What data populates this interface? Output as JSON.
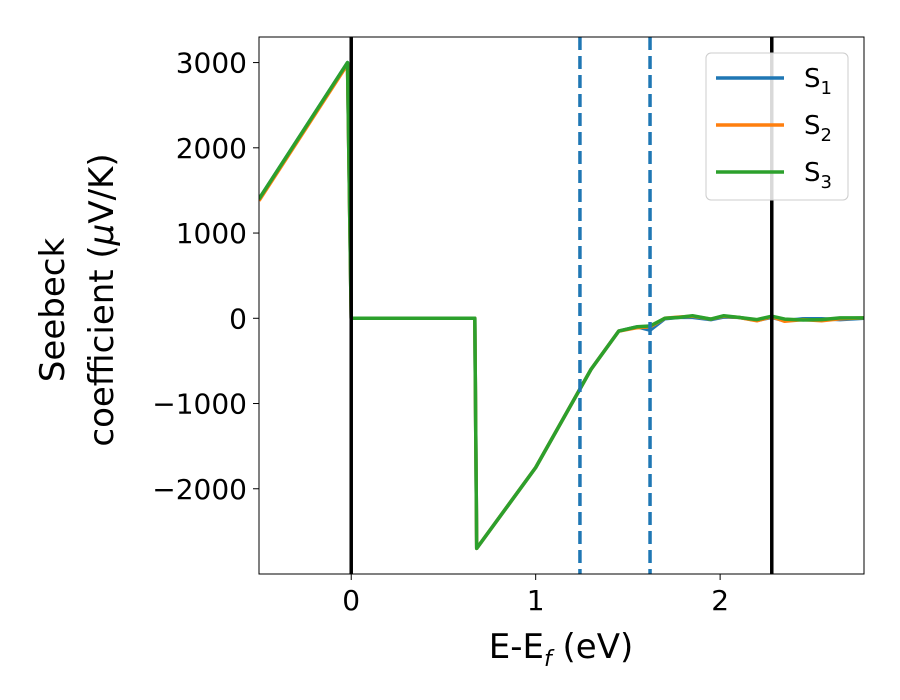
{
  "chart_data": {
    "type": "line",
    "xlabel": "E-E",
    "xlabel_sub": "f",
    "xlabel_unit": " (eV)",
    "ylabel_line1": "Seebeck",
    "ylabel_line2": "coefficient  (",
    "ylabel_mu": "μ",
    "ylabel_unit": "V/K)",
    "xlim": [
      -0.5,
      2.78
    ],
    "ylim": [
      -3000,
      3300
    ],
    "x_ticks": [
      0,
      1,
      2
    ],
    "x_tick_labels": [
      "0",
      "1",
      "2"
    ],
    "y_ticks": [
      3000,
      2000,
      1000,
      0,
      -1000,
      -2000
    ],
    "y_tick_labels": [
      "3000",
      "2000",
      "1000",
      "0",
      "−1000",
      "−2000"
    ],
    "vlines": [
      {
        "x": 0.0,
        "style": "solid",
        "color": "#000000"
      },
      {
        "x": 2.28,
        "style": "solid",
        "color": "#000000"
      },
      {
        "x": 1.24,
        "style": "dashed",
        "color": "#1f77b4"
      },
      {
        "x": 1.62,
        "style": "dashed",
        "color": "#1f77b4"
      }
    ],
    "legend": {
      "placement": "top-right"
    },
    "series": [
      {
        "name": "S",
        "sub": "1",
        "color": "#1f77b4",
        "x": [
          -0.5,
          -0.02,
          0.0,
          0.67,
          0.68,
          1.0,
          1.3,
          1.45,
          1.55,
          1.62,
          1.7,
          1.78,
          1.85,
          1.95,
          2.02,
          2.1,
          2.2,
          2.28,
          2.35,
          2.45,
          2.55,
          2.65,
          2.78
        ],
        "y": [
          1400,
          3000,
          0,
          0,
          -2700,
          -1750,
          -600,
          -150,
          -100,
          -140,
          -5,
          10,
          10,
          -15,
          15,
          10,
          -25,
          10,
          -30,
          -5,
          -5,
          -15,
          0
        ]
      },
      {
        "name": "S",
        "sub": "2",
        "color": "#ff7f0e",
        "x": [
          -0.5,
          -0.02,
          0.0,
          0.67,
          0.68,
          1.0,
          1.3,
          1.45,
          1.55,
          1.62,
          1.7,
          1.78,
          1.85,
          1.95,
          2.02,
          2.1,
          2.2,
          2.28,
          2.35,
          2.45,
          2.55,
          2.65,
          2.78
        ],
        "y": [
          1380,
          2980,
          0,
          0,
          -2700,
          -1750,
          -600,
          -150,
          -110,
          -100,
          0,
          15,
          25,
          -10,
          25,
          10,
          -30,
          20,
          -35,
          -15,
          -30,
          -5,
          5
        ]
      },
      {
        "name": "S",
        "sub": "3",
        "color": "#2ca02c",
        "x": [
          -0.5,
          -0.02,
          0.0,
          0.67,
          0.68,
          1.0,
          1.3,
          1.45,
          1.55,
          1.62,
          1.7,
          1.78,
          1.85,
          1.95,
          2.02,
          2.1,
          2.2,
          2.28,
          2.35,
          2.45,
          2.55,
          2.65,
          2.78
        ],
        "y": [
          1400,
          3000,
          0,
          0,
          -2700,
          -1750,
          -600,
          -150,
          -100,
          -90,
          0,
          10,
          30,
          -10,
          30,
          10,
          -15,
          25,
          -10,
          -20,
          -15,
          5,
          5
        ]
      }
    ]
  }
}
